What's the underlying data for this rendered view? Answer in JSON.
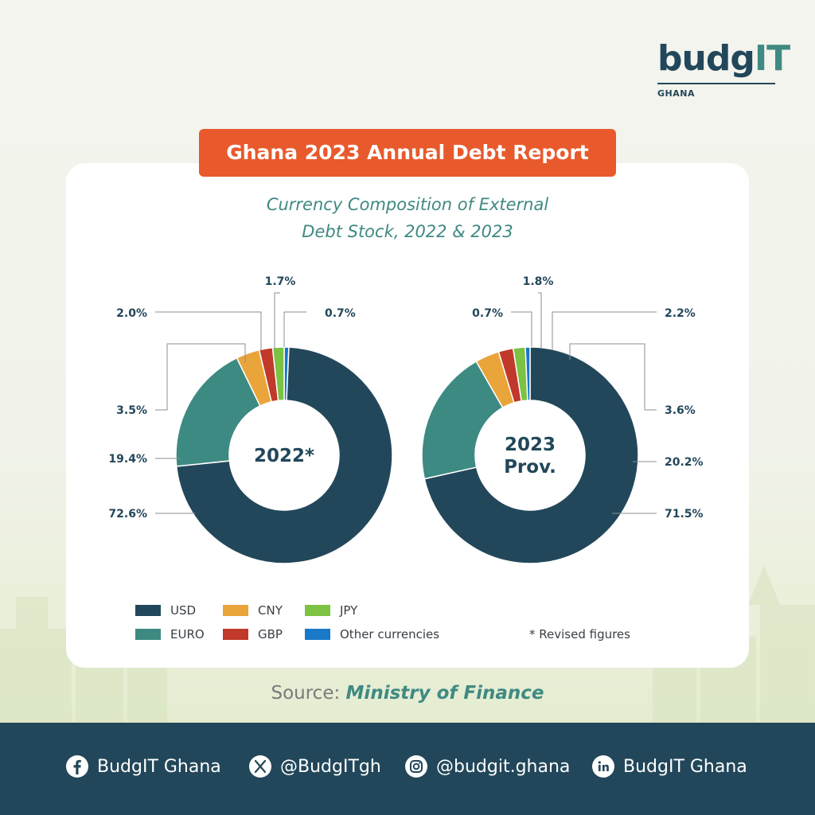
{
  "brand": {
    "logo_text_main": "budg",
    "logo_text_accent": "IT",
    "logo_subtitle": "GHANA"
  },
  "banner": {
    "title": "Ghana 2023 Annual Debt Report"
  },
  "chart_title": [
    "Currency Composition of External",
    "Debt Stock, 2022 & 2023"
  ],
  "colors": {
    "USD": "#22475a",
    "EURO": "#3d8a82",
    "CNY": "#e9a43a",
    "GBP": "#c0392b",
    "JPY": "#7cc243",
    "Other currencies": "#1a78c8"
  },
  "chart_data": [
    {
      "type": "pie",
      "center_label": [
        "2022*"
      ],
      "categories": [
        "Other currencies",
        "USD",
        "EURO",
        "CNY",
        "GBP",
        "JPY"
      ],
      "values": [
        0.7,
        72.6,
        19.4,
        3.5,
        2.0,
        1.7
      ],
      "labels": [
        "0.7%",
        "72.6%",
        "19.4%",
        "3.5%",
        "2.0%",
        "1.7%"
      ]
    },
    {
      "type": "pie",
      "center_label": [
        "2023",
        "Prov."
      ],
      "categories": [
        "USD",
        "EURO",
        "CNY",
        "GBP",
        "JPY",
        "Other currencies"
      ],
      "values": [
        71.5,
        20.2,
        3.6,
        2.2,
        1.8,
        0.7
      ],
      "labels": [
        "71.5%",
        "20.2%",
        "3.6%",
        "2.2%",
        "1.8%",
        "0.7%"
      ]
    }
  ],
  "legend": [
    "USD",
    "EURO",
    "CNY",
    "GBP",
    "JPY",
    "Other currencies"
  ],
  "note": "* Revised figures",
  "source": {
    "prefix": "Source:",
    "name": "Ministry of Finance"
  },
  "social": [
    {
      "icon": "facebook-icon",
      "label": "BudgIT Ghana"
    },
    {
      "icon": "x-icon",
      "label": "@BudgITgh"
    },
    {
      "icon": "instagram-icon",
      "label": "@budgit.ghana"
    },
    {
      "icon": "linkedin-icon",
      "label": "BudgIT Ghana"
    }
  ]
}
